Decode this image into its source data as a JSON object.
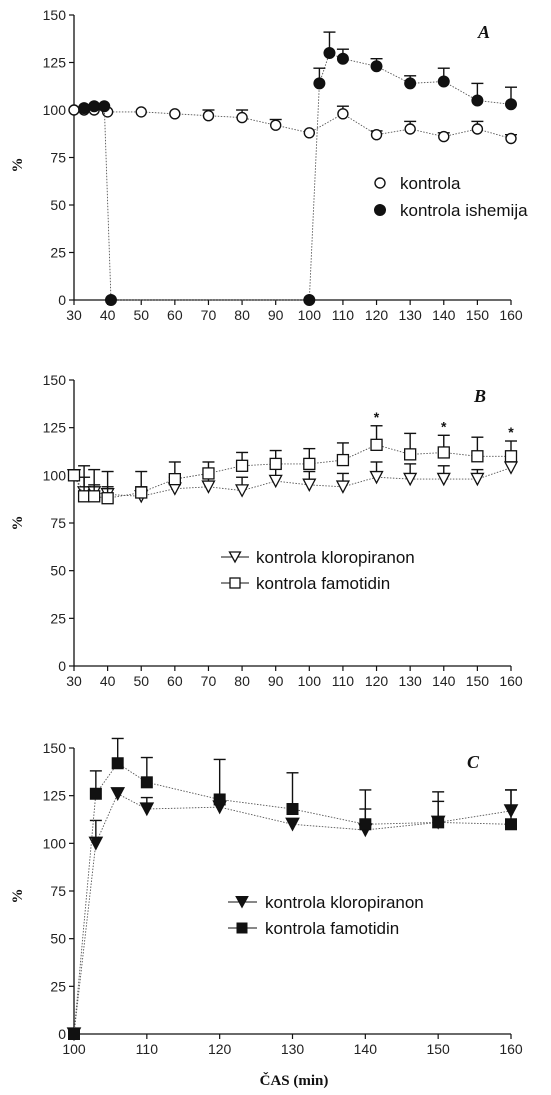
{
  "chart_data": [
    {
      "type": "line",
      "panel_label": "A",
      "ylabel": "%",
      "xlabel": "",
      "xlim": [
        30,
        160
      ],
      "ylim": [
        0,
        150
      ],
      "xticks": [
        30,
        40,
        50,
        60,
        70,
        80,
        90,
        100,
        110,
        120,
        130,
        140,
        150,
        160
      ],
      "yticks": [
        0,
        25,
        50,
        75,
        100,
        125,
        150
      ],
      "legend_position": "center-right",
      "series": [
        {
          "name": "kontrola",
          "marker": "circle-open",
          "x": [
            30,
            33,
            36,
            40,
            50,
            60,
            70,
            80,
            90,
            100,
            110,
            120,
            130,
            140,
            150,
            160
          ],
          "y": [
            100,
            100,
            100,
            99,
            99,
            98,
            97,
            96,
            92,
            88,
            98,
            87,
            90,
            86,
            90,
            85
          ],
          "err": [
            0,
            0,
            0,
            0,
            0,
            0,
            3,
            4,
            3,
            0,
            4,
            2,
            4,
            2,
            4,
            2
          ]
        },
        {
          "name": "kontrola ishemija",
          "marker": "circle-filled",
          "x": [
            33,
            36,
            39,
            41,
            100,
            103,
            106,
            110,
            120,
            130,
            140,
            150,
            160
          ],
          "y": [
            101,
            102,
            102,
            0,
            0,
            114,
            130,
            127,
            123,
            114,
            115,
            105,
            103
          ],
          "err": [
            0,
            0,
            0,
            0,
            0,
            8,
            11,
            5,
            4,
            4,
            7,
            9,
            9
          ]
        }
      ],
      "annotations": []
    },
    {
      "type": "line",
      "panel_label": "B",
      "ylabel": "%",
      "xlabel": "",
      "xlim": [
        30,
        160
      ],
      "ylim": [
        0,
        150
      ],
      "xticks": [
        30,
        40,
        50,
        60,
        70,
        80,
        90,
        100,
        110,
        120,
        130,
        140,
        150,
        160
      ],
      "yticks": [
        0,
        25,
        50,
        75,
        100,
        125,
        150
      ],
      "legend_position": "center",
      "series": [
        {
          "name": "kontrola kloropiranon",
          "marker": "triangle-down-open",
          "x": [
            30,
            33,
            36,
            40,
            50,
            60,
            70,
            80,
            90,
            100,
            110,
            120,
            130,
            140,
            150,
            160
          ],
          "y": [
            100,
            91,
            91,
            90,
            89,
            93,
            94,
            92,
            97,
            95,
            94,
            99,
            98,
            98,
            98,
            104
          ],
          "err": [
            0,
            14,
            12,
            12,
            5,
            6,
            6,
            7,
            7,
            7,
            7,
            8,
            8,
            7,
            5,
            5
          ]
        },
        {
          "name": "kontrola famotidin",
          "marker": "square-open",
          "x": [
            30,
            33,
            36,
            40,
            50,
            60,
            70,
            80,
            90,
            100,
            110,
            120,
            130,
            140,
            150,
            160
          ],
          "y": [
            100,
            89,
            89,
            88,
            91,
            98,
            101,
            105,
            106,
            106,
            108,
            116,
            111,
            112,
            110,
            110
          ],
          "err": [
            0,
            10,
            6,
            6,
            11,
            9,
            6,
            7,
            7,
            8,
            9,
            10,
            11,
            9,
            10,
            8
          ]
        }
      ],
      "annotations": [
        {
          "text": "*",
          "x": 120
        },
        {
          "text": "*",
          "x": 140
        },
        {
          "text": "*",
          "x": 160
        }
      ]
    },
    {
      "type": "line",
      "panel_label": "C",
      "ylabel": "%",
      "xlabel": "ČAS (min)",
      "xlim": [
        100,
        160
      ],
      "ylim": [
        0,
        150
      ],
      "xticks": [
        100,
        110,
        120,
        130,
        140,
        150,
        160
      ],
      "yticks": [
        0,
        25,
        50,
        75,
        100,
        125,
        150
      ],
      "legend_position": "center",
      "series": [
        {
          "name": "kontrola kloropiranon",
          "marker": "triangle-down-filled",
          "x": [
            100,
            103,
            106,
            110,
            120,
            130,
            140,
            150,
            160
          ],
          "y": [
            0,
            100,
            126,
            118,
            119,
            110,
            107,
            111,
            117
          ],
          "err": [
            0,
            12,
            0,
            6,
            0,
            0,
            11,
            11,
            11
          ]
        },
        {
          "name": "kontrola famotidin",
          "marker": "square-filled",
          "x": [
            100,
            103,
            106,
            110,
            120,
            130,
            140,
            150,
            160
          ],
          "y": [
            0,
            126,
            142,
            132,
            123,
            118,
            110,
            111,
            110
          ],
          "err": [
            0,
            12,
            13,
            13,
            21,
            19,
            18,
            16,
            18
          ]
        }
      ],
      "annotations": []
    }
  ]
}
